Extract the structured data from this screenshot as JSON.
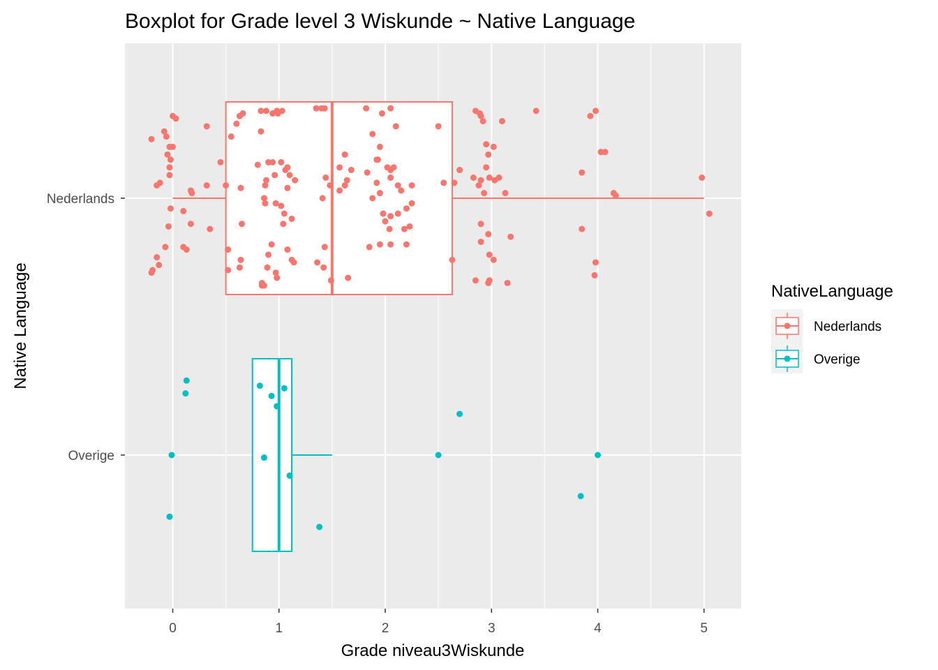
{
  "chart_data": {
    "type": "boxplot",
    "title": "Boxplot for Grade level 3 Wiskunde ~ Native Language",
    "xlabel": "Grade niveau3Wiskunde",
    "ylabel": "Native Language",
    "xlim": [
      -0.45,
      5.35
    ],
    "x_ticks": [
      0,
      1,
      2,
      3,
      4,
      5
    ],
    "x_tick_labels": [
      "0",
      "1",
      "2",
      "3",
      "4",
      "5"
    ],
    "categories": [
      "Nederlands",
      "Overige"
    ],
    "grid": true,
    "legend": {
      "title": "NativeLanguage",
      "position": "right",
      "entries": [
        "Nederlands",
        "Overige"
      ]
    },
    "series": [
      {
        "name": "Nederlands",
        "color": "#F8766D",
        "box": {
          "lower_whisker": 0,
          "q1": 0.5,
          "median": 1.5,
          "q3": 2.63,
          "upper_whisker": 5
        },
        "points": [
          {
            "x": 0.0,
            "y": 0.32
          },
          {
            "x": -0.03,
            "y": 0.12
          },
          {
            "x": 0.03,
            "y": 0.31
          },
          {
            "x": -0.2,
            "y": 0.23
          },
          {
            "x": -0.08,
            "y": 0.26
          },
          {
            "x": -0.06,
            "y": 0.24
          },
          {
            "x": -0.03,
            "y": 0.2
          },
          {
            "x": 0.0,
            "y": 0.2
          },
          {
            "x": -0.05,
            "y": 0.17
          },
          {
            "x": -0.02,
            "y": 0.15
          },
          {
            "x": -0.03,
            "y": 0.09
          },
          {
            "x": -0.12,
            "y": 0.06
          },
          {
            "x": -0.15,
            "y": 0.05
          },
          {
            "x": -0.02,
            "y": -0.04
          },
          {
            "x": -0.04,
            "y": -0.11
          },
          {
            "x": -0.07,
            "y": -0.19
          },
          {
            "x": -0.15,
            "y": -0.23
          },
          {
            "x": -0.13,
            "y": -0.26
          },
          {
            "x": -0.2,
            "y": -0.29
          },
          {
            "x": -0.19,
            "y": -0.28
          },
          {
            "x": 0.1,
            "y": -0.05
          },
          {
            "x": 0.18,
            "y": 0.02
          },
          {
            "x": 0.17,
            "y": 0.03
          },
          {
            "x": 0.13,
            "y": -0.2
          },
          {
            "x": 0.1,
            "y": -0.19
          },
          {
            "x": 0.17,
            "y": -0.1
          },
          {
            "x": 0.32,
            "y": 0.28
          },
          {
            "x": 0.32,
            "y": 0.05
          },
          {
            "x": 0.45,
            "y": 0.14
          },
          {
            "x": 0.35,
            "y": -0.12
          },
          {
            "x": 0.5,
            "y": 0.05
          },
          {
            "x": 0.52,
            "y": -0.2
          },
          {
            "x": 0.52,
            "y": -0.28
          },
          {
            "x": 0.55,
            "y": 0.24
          },
          {
            "x": 0.6,
            "y": 0.29
          },
          {
            "x": 0.63,
            "y": 0.32
          },
          {
            "x": 0.66,
            "y": 0.33
          },
          {
            "x": 0.64,
            "y": 0.04
          },
          {
            "x": 0.65,
            "y": -0.1
          },
          {
            "x": 0.64,
            "y": -0.24
          },
          {
            "x": 0.63,
            "y": -0.27
          },
          {
            "x": 0.83,
            "y": 0.34
          },
          {
            "x": 0.88,
            "y": 0.34
          },
          {
            "x": 0.98,
            "y": 0.34
          },
          {
            "x": 0.99,
            "y": 0.33
          },
          {
            "x": 0.94,
            "y": 0.33
          },
          {
            "x": 1.03,
            "y": 0.34
          },
          {
            "x": 0.83,
            "y": 0.26
          },
          {
            "x": 0.8,
            "y": 0.13
          },
          {
            "x": 0.9,
            "y": 0.14
          },
          {
            "x": 0.94,
            "y": 0.14
          },
          {
            "x": 1.02,
            "y": 0.14
          },
          {
            "x": 1.06,
            "y": 0.11
          },
          {
            "x": 1.08,
            "y": 0.12
          },
          {
            "x": 1.1,
            "y": 0.09
          },
          {
            "x": 0.88,
            "y": 0.07
          },
          {
            "x": 0.87,
            "y": 0.05
          },
          {
            "x": 0.96,
            "y": 0.09
          },
          {
            "x": 1.08,
            "y": 0.04
          },
          {
            "x": 1.15,
            "y": 0.07
          },
          {
            "x": 0.86,
            "y": 0.0
          },
          {
            "x": 0.87,
            "y": -0.02
          },
          {
            "x": 0.97,
            "y": -0.02
          },
          {
            "x": 1.02,
            "y": -0.03
          },
          {
            "x": 1.05,
            "y": -0.06
          },
          {
            "x": 1.12,
            "y": -0.08
          },
          {
            "x": 1.04,
            "y": -0.1
          },
          {
            "x": 0.93,
            "y": -0.18
          },
          {
            "x": 0.9,
            "y": -0.22
          },
          {
            "x": 1.08,
            "y": -0.2
          },
          {
            "x": 1.12,
            "y": -0.24
          },
          {
            "x": 1.14,
            "y": -0.25
          },
          {
            "x": 0.89,
            "y": -0.27
          },
          {
            "x": 0.97,
            "y": -0.29
          },
          {
            "x": 0.98,
            "y": -0.31
          },
          {
            "x": 0.84,
            "y": -0.34
          },
          {
            "x": 0.86,
            "y": -0.34
          },
          {
            "x": 0.84,
            "y": -0.33
          },
          {
            "x": 1.35,
            "y": 0.35
          },
          {
            "x": 1.4,
            "y": 0.35
          },
          {
            "x": 1.43,
            "y": 0.35
          },
          {
            "x": 1.44,
            "y": 0.08
          },
          {
            "x": 1.48,
            "y": 0.05
          },
          {
            "x": 1.41,
            "y": 0.0
          },
          {
            "x": 1.43,
            "y": -0.19
          },
          {
            "x": 1.36,
            "y": -0.25
          },
          {
            "x": 1.42,
            "y": -0.27
          },
          {
            "x": 1.49,
            "y": -0.32
          },
          {
            "x": 1.62,
            "y": 0.17
          },
          {
            "x": 1.57,
            "y": 0.12
          },
          {
            "x": 1.68,
            "y": 0.11
          },
          {
            "x": 1.64,
            "y": 0.07
          },
          {
            "x": 1.62,
            "y": 0.05
          },
          {
            "x": 1.57,
            "y": 0.03
          },
          {
            "x": 1.65,
            "y": -0.31
          },
          {
            "x": 1.82,
            "y": 0.35
          },
          {
            "x": 1.97,
            "y": 0.33
          },
          {
            "x": 2.05,
            "y": 0.35
          },
          {
            "x": 1.88,
            "y": 0.25
          },
          {
            "x": 2.1,
            "y": 0.28
          },
          {
            "x": 1.95,
            "y": 0.2
          },
          {
            "x": 1.92,
            "y": 0.15
          },
          {
            "x": 1.93,
            "y": 0.15
          },
          {
            "x": 2.02,
            "y": 0.12
          },
          {
            "x": 2.05,
            "y": 0.11
          },
          {
            "x": 2.08,
            "y": 0.12
          },
          {
            "x": 1.83,
            "y": 0.1
          },
          {
            "x": 1.92,
            "y": 0.06
          },
          {
            "x": 2.05,
            "y": 0.08
          },
          {
            "x": 2.12,
            "y": 0.05
          },
          {
            "x": 1.88,
            "y": 0.0
          },
          {
            "x": 1.95,
            "y": 0.02
          },
          {
            "x": 2.15,
            "y": 0.03
          },
          {
            "x": 2.25,
            "y": 0.05
          },
          {
            "x": 1.98,
            "y": -0.06
          },
          {
            "x": 2.05,
            "y": -0.07
          },
          {
            "x": 2.12,
            "y": -0.06
          },
          {
            "x": 2.2,
            "y": -0.04
          },
          {
            "x": 2.25,
            "y": -0.02
          },
          {
            "x": 2.0,
            "y": -0.09
          },
          {
            "x": 2.04,
            "y": -0.12
          },
          {
            "x": 2.18,
            "y": -0.12
          },
          {
            "x": 2.23,
            "y": -0.11
          },
          {
            "x": 2.2,
            "y": -0.18
          },
          {
            "x": 2.05,
            "y": -0.18
          },
          {
            "x": 1.95,
            "y": -0.18
          },
          {
            "x": 1.85,
            "y": -0.19
          },
          {
            "x": 2.5,
            "y": 0.28
          },
          {
            "x": 2.55,
            "y": 0.06
          },
          {
            "x": 2.65,
            "y": 0.06
          },
          {
            "x": 2.7,
            "y": 0.11
          },
          {
            "x": 2.63,
            "y": -0.24
          },
          {
            "x": 2.85,
            "y": 0.34
          },
          {
            "x": 2.9,
            "y": 0.32
          },
          {
            "x": 2.89,
            "y": 0.33
          },
          {
            "x": 2.92,
            "y": 0.3
          },
          {
            "x": 2.95,
            "y": 0.21
          },
          {
            "x": 3.02,
            "y": 0.2
          },
          {
            "x": 2.97,
            "y": 0.17
          },
          {
            "x": 2.95,
            "y": 0.12
          },
          {
            "x": 2.83,
            "y": 0.08
          },
          {
            "x": 2.9,
            "y": 0.07
          },
          {
            "x": 2.98,
            "y": 0.08
          },
          {
            "x": 2.88,
            "y": 0.05
          },
          {
            "x": 2.93,
            "y": 0.02
          },
          {
            "x": 3.03,
            "y": 0.07
          },
          {
            "x": 3.07,
            "y": 0.08
          },
          {
            "x": 3.13,
            "y": 0.02
          },
          {
            "x": 3.1,
            "y": 0.3
          },
          {
            "x": 2.9,
            "y": -0.1
          },
          {
            "x": 2.97,
            "y": -0.14
          },
          {
            "x": 2.9,
            "y": -0.17
          },
          {
            "x": 2.98,
            "y": -0.22
          },
          {
            "x": 3.02,
            "y": -0.24
          },
          {
            "x": 3.18,
            "y": -0.15
          },
          {
            "x": 2.85,
            "y": -0.32
          },
          {
            "x": 2.98,
            "y": -0.32
          },
          {
            "x": 2.97,
            "y": -0.33
          },
          {
            "x": 3.15,
            "y": -0.33
          },
          {
            "x": 3.42,
            "y": 0.34
          },
          {
            "x": 3.85,
            "y": 0.1
          },
          {
            "x": 3.93,
            "y": 0.32
          },
          {
            "x": 3.98,
            "y": 0.34
          },
          {
            "x": 4.03,
            "y": 0.18
          },
          {
            "x": 4.07,
            "y": 0.18
          },
          {
            "x": 4.15,
            "y": 0.02
          },
          {
            "x": 4.17,
            "y": 0.01
          },
          {
            "x": 3.85,
            "y": -0.12
          },
          {
            "x": 3.98,
            "y": -0.25
          },
          {
            "x": 3.97,
            "y": -0.3
          },
          {
            "x": 4.98,
            "y": 0.08
          },
          {
            "x": 5.05,
            "y": -0.06
          }
        ]
      },
      {
        "name": "Overige",
        "color": "#00BFC4",
        "box": {
          "lower_whisker": 0.75,
          "q1": 0.75,
          "median": 1.0,
          "q3": 1.12,
          "upper_whisker": 1.5
        },
        "points": [
          {
            "x": 0.13,
            "y": 0.29
          },
          {
            "x": 0.12,
            "y": 0.24
          },
          {
            "x": -0.01,
            "y": 0.0
          },
          {
            "x": -0.03,
            "y": -0.24
          },
          {
            "x": 0.82,
            "y": 0.27
          },
          {
            "x": 0.93,
            "y": 0.23
          },
          {
            "x": 0.98,
            "y": 0.19
          },
          {
            "x": 1.05,
            "y": 0.26
          },
          {
            "x": 0.86,
            "y": -0.01
          },
          {
            "x": 1.1,
            "y": -0.08
          },
          {
            "x": 1.38,
            "y": -0.28
          },
          {
            "x": 2.5,
            "y": 0.0
          },
          {
            "x": 2.7,
            "y": 0.16
          },
          {
            "x": 3.84,
            "y": -0.16
          },
          {
            "x": 4.0,
            "y": 0.0
          }
        ]
      }
    ]
  }
}
